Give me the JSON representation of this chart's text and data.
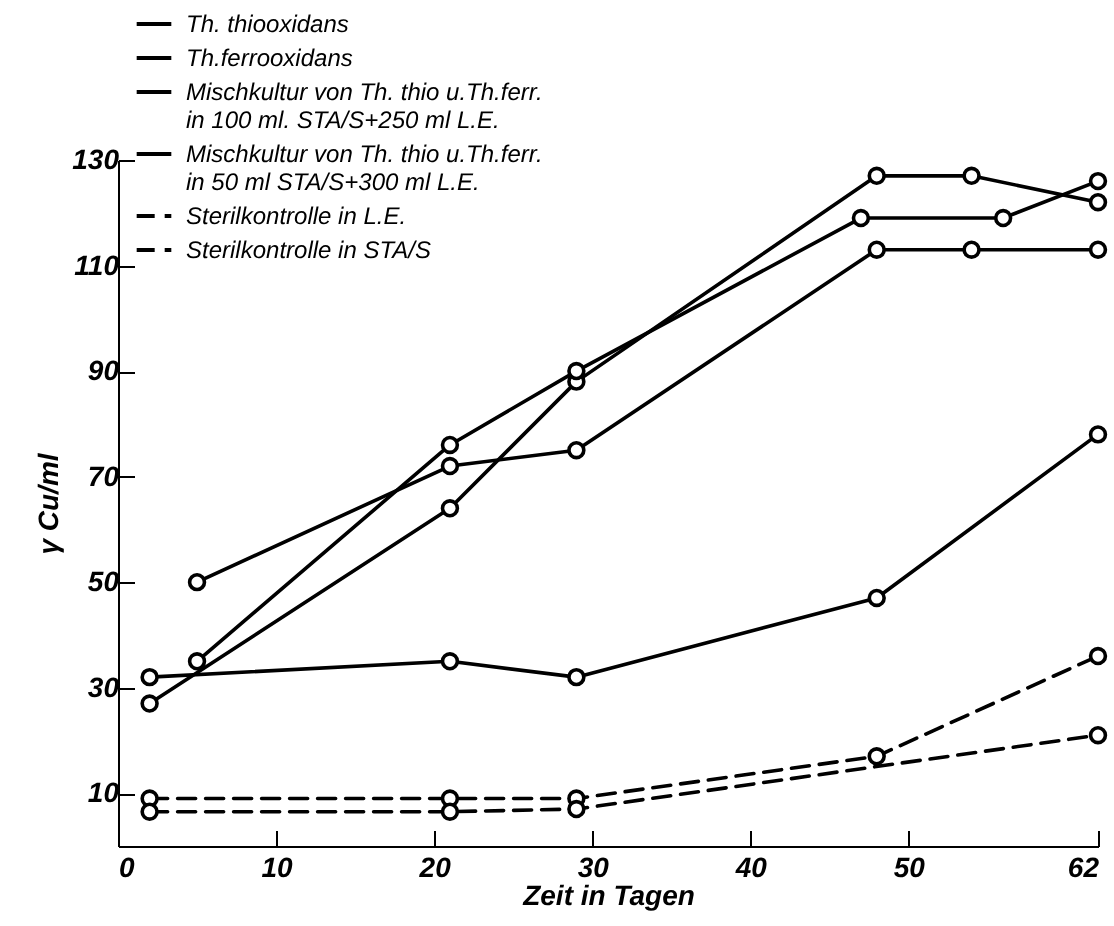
{
  "chart_data": {
    "type": "line",
    "xlabel": "Zeit in Tagen",
    "ylabel": "γ Cu/ml",
    "xlim": [
      0,
      62
    ],
    "ylim": [
      0,
      130
    ],
    "xticks": [
      0,
      10,
      20,
      30,
      40,
      50,
      62
    ],
    "yticks": [
      10,
      30,
      50,
      70,
      90,
      110,
      130
    ],
    "grid": false,
    "legend": "top left",
    "marker": "circle",
    "line_style": "solid",
    "series": [
      {
        "name": "Th. thiooxidans",
        "color": "#000000",
        "x": [
          2,
          21,
          29,
          48,
          62
        ],
        "values": [
          32,
          35,
          32,
          47,
          78
        ]
      },
      {
        "name": "Th.ferrooxidans",
        "color": "#000000",
        "x": [
          2,
          21,
          29,
          48,
          54,
          62
        ],
        "values": [
          27,
          64,
          88,
          127,
          127,
          122
        ]
      },
      {
        "name": "Mischkultur von Th. thio u.Th.ferr. in 100 ml. STA/S+250 ml L.E.",
        "color": "#000000",
        "x": [
          5,
          21,
          29,
          47,
          56,
          62
        ],
        "values": [
          35,
          76,
          90,
          119,
          119,
          126
        ]
      },
      {
        "name": "Mischkultur von Th. thio u.Th.ferr. in 50 ml STA/S+300 ml L.E.",
        "color": "#000000",
        "x": [
          5,
          21,
          29,
          48,
          54,
          62
        ],
        "values": [
          50,
          72,
          75,
          113,
          113,
          113
        ]
      },
      {
        "name": "Sterilkontrolle in L.E.",
        "color": "#000000",
        "line_style": "dashed",
        "x": [
          2,
          21,
          29,
          48,
          62
        ],
        "values": [
          9,
          9,
          9,
          17,
          36
        ]
      },
      {
        "name": "Sterilkontrolle in STA/S",
        "color": "#000000",
        "line_style": "dashed",
        "x": [
          2,
          21,
          29,
          62
        ],
        "values": [
          6.5,
          6.5,
          7,
          21
        ]
      }
    ]
  }
}
